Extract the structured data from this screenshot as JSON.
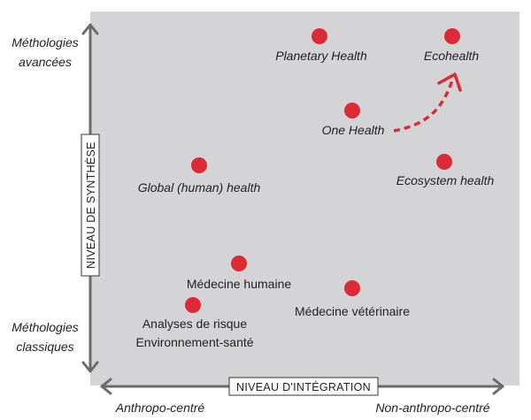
{
  "axes": {
    "x_title": "NIVEAU D'INTÉGRATION",
    "y_title": "NIVEAU DE SYNTHÈSE",
    "x_left_label": "Anthropo-centré",
    "x_right_label": "Non-anthropo-centré",
    "y_top_label": [
      "Méthologies",
      "avancées"
    ],
    "y_bottom_label": [
      "Méthologies",
      "classiques"
    ]
  },
  "colors": {
    "plot_background": "#d4d4d6",
    "dot": "#dc2b36",
    "arrow": "#dc2b36",
    "axis": "#6b6b6b"
  },
  "points": [
    {
      "id": "planetary-health",
      "lines": [
        "Planetary Health"
      ],
      "italic": true
    },
    {
      "id": "ecohealth",
      "lines": [
        "Ecohealth"
      ],
      "italic": true
    },
    {
      "id": "one-health",
      "lines": [
        "One Health"
      ],
      "italic": true
    },
    {
      "id": "global-human-health",
      "lines": [
        "Global (human) health"
      ],
      "italic": true
    },
    {
      "id": "ecosystem-health",
      "lines": [
        "Ecosystem health"
      ],
      "italic": true
    },
    {
      "id": "medecine-humaine",
      "lines": [
        "Médecine humaine"
      ],
      "italic": false
    },
    {
      "id": "medecine-veterinaire",
      "lines": [
        "Médecine vétérinaire"
      ],
      "italic": false
    },
    {
      "id": "analyses-de-risque",
      "lines": [
        "Analyses de risque",
        "Environnement-santé"
      ],
      "italic": false
    }
  ]
}
